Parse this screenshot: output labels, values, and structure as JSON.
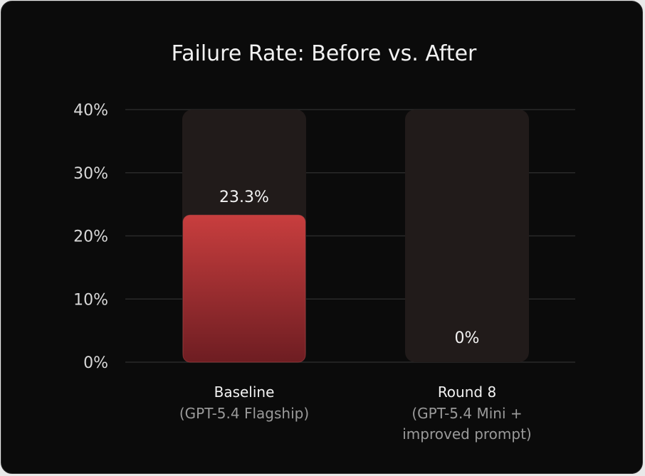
{
  "chart_data": {
    "type": "bar",
    "title": "Failure Rate: Before vs. After",
    "categories": [
      {
        "label": "Baseline",
        "sublabel": [
          "(GPT-5.4 Flagship)"
        ]
      },
      {
        "label": "Round 8",
        "sublabel": [
          "(GPT-5.4 Mini +",
          "improved prompt)"
        ]
      }
    ],
    "values": [
      23.3,
      0
    ],
    "value_labels": [
      "23.3%",
      "0%"
    ],
    "ylim": [
      0,
      40
    ],
    "y_ticks": [
      0,
      10,
      20,
      30,
      40
    ],
    "y_tick_labels": [
      "0%",
      "10%",
      "20%",
      "30%",
      "40%"
    ],
    "grid": true,
    "colors": {
      "background": "#0b0b0b",
      "track": "#211b1a",
      "bar_top": "#c83e3e",
      "bar_bottom": "#6e1d22",
      "grid": "#2a2a2a",
      "text": "#f2f2f2",
      "tick_text": "#d8d8d8",
      "sublabel_text": "#9a9a9a"
    }
  }
}
